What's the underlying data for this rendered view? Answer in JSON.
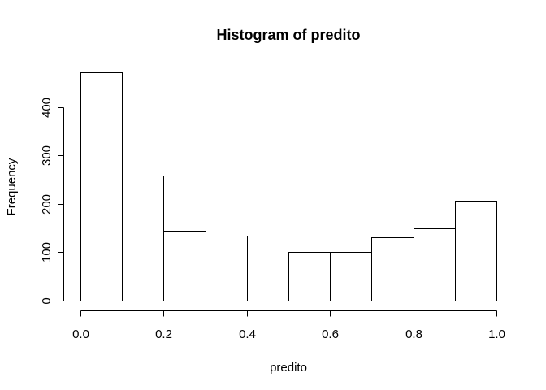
{
  "chart_data": {
    "type": "bar",
    "title": "Histogram of predito",
    "xlabel": "predito",
    "ylabel": "Frequency",
    "bins": [
      {
        "start": 0.0,
        "end": 0.1,
        "count": 472
      },
      {
        "start": 0.1,
        "end": 0.2,
        "count": 259
      },
      {
        "start": 0.2,
        "end": 0.3,
        "count": 145
      },
      {
        "start": 0.3,
        "end": 0.4,
        "count": 135
      },
      {
        "start": 0.4,
        "end": 0.5,
        "count": 71
      },
      {
        "start": 0.5,
        "end": 0.6,
        "count": 100
      },
      {
        "start": 0.6,
        "end": 0.7,
        "count": 101
      },
      {
        "start": 0.7,
        "end": 0.8,
        "count": 131
      },
      {
        "start": 0.8,
        "end": 0.9,
        "count": 150
      },
      {
        "start": 0.9,
        "end": 1.0,
        "count": 207
      }
    ],
    "xlim": [
      0,
      1
    ],
    "ylim": [
      0,
      472
    ],
    "x_ticks": [
      {
        "value": 0.0,
        "label": "0.0"
      },
      {
        "value": 0.2,
        "label": "0.2"
      },
      {
        "value": 0.4,
        "label": "0.4"
      },
      {
        "value": 0.6,
        "label": "0.6"
      },
      {
        "value": 0.8,
        "label": "0.8"
      },
      {
        "value": 1.0,
        "label": "1.0"
      }
    ],
    "y_ticks": [
      {
        "value": 0,
        "label": "0"
      },
      {
        "value": 100,
        "label": "100"
      },
      {
        "value": 200,
        "label": "200"
      },
      {
        "value": 300,
        "label": "300"
      },
      {
        "value": 400,
        "label": "400"
      }
    ],
    "grid": false,
    "legend": "none",
    "colors": {
      "bar_fill": "#ffffff",
      "bar_stroke": "#000000",
      "text": "#000000"
    }
  }
}
